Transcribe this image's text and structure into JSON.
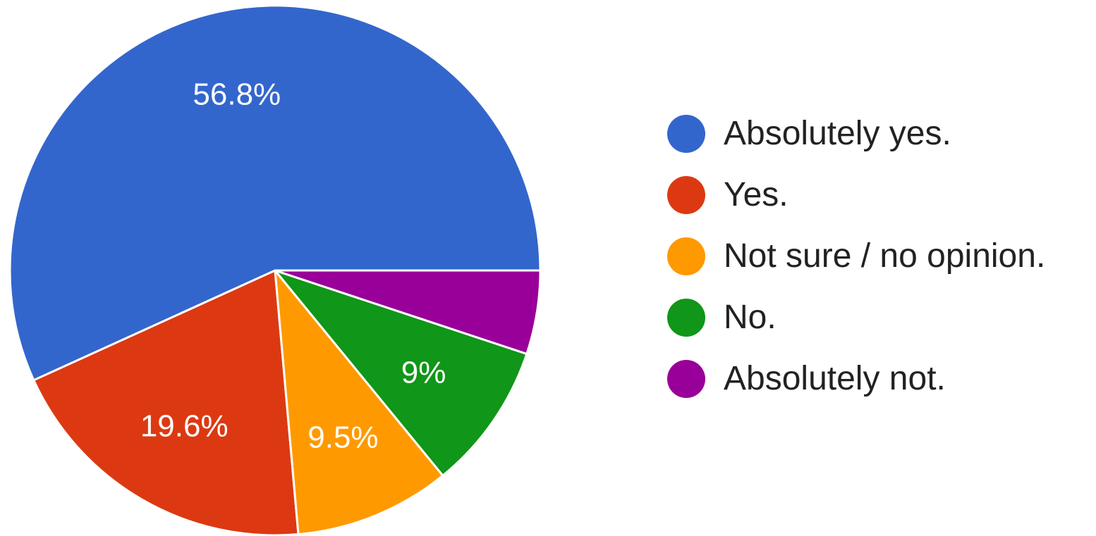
{
  "chart_data": {
    "type": "pie",
    "title": "",
    "legend_position": "right",
    "slices": [
      {
        "name": "Absolutely yes.",
        "value": 56.8,
        "label": "56.8%",
        "color": "#3366CC"
      },
      {
        "name": "Yes.",
        "value": 19.6,
        "label": "19.6%",
        "color": "#DC3912"
      },
      {
        "name": "Not sure / no opinion.",
        "value": 9.5,
        "label": "9.5%",
        "color": "#FF9900"
      },
      {
        "name": "No.",
        "value": 9,
        "label": "9%",
        "color": "#109618"
      },
      {
        "name": "Absolutely not.",
        "value": 5.1,
        "label": "",
        "color": "#990099"
      }
    ]
  }
}
